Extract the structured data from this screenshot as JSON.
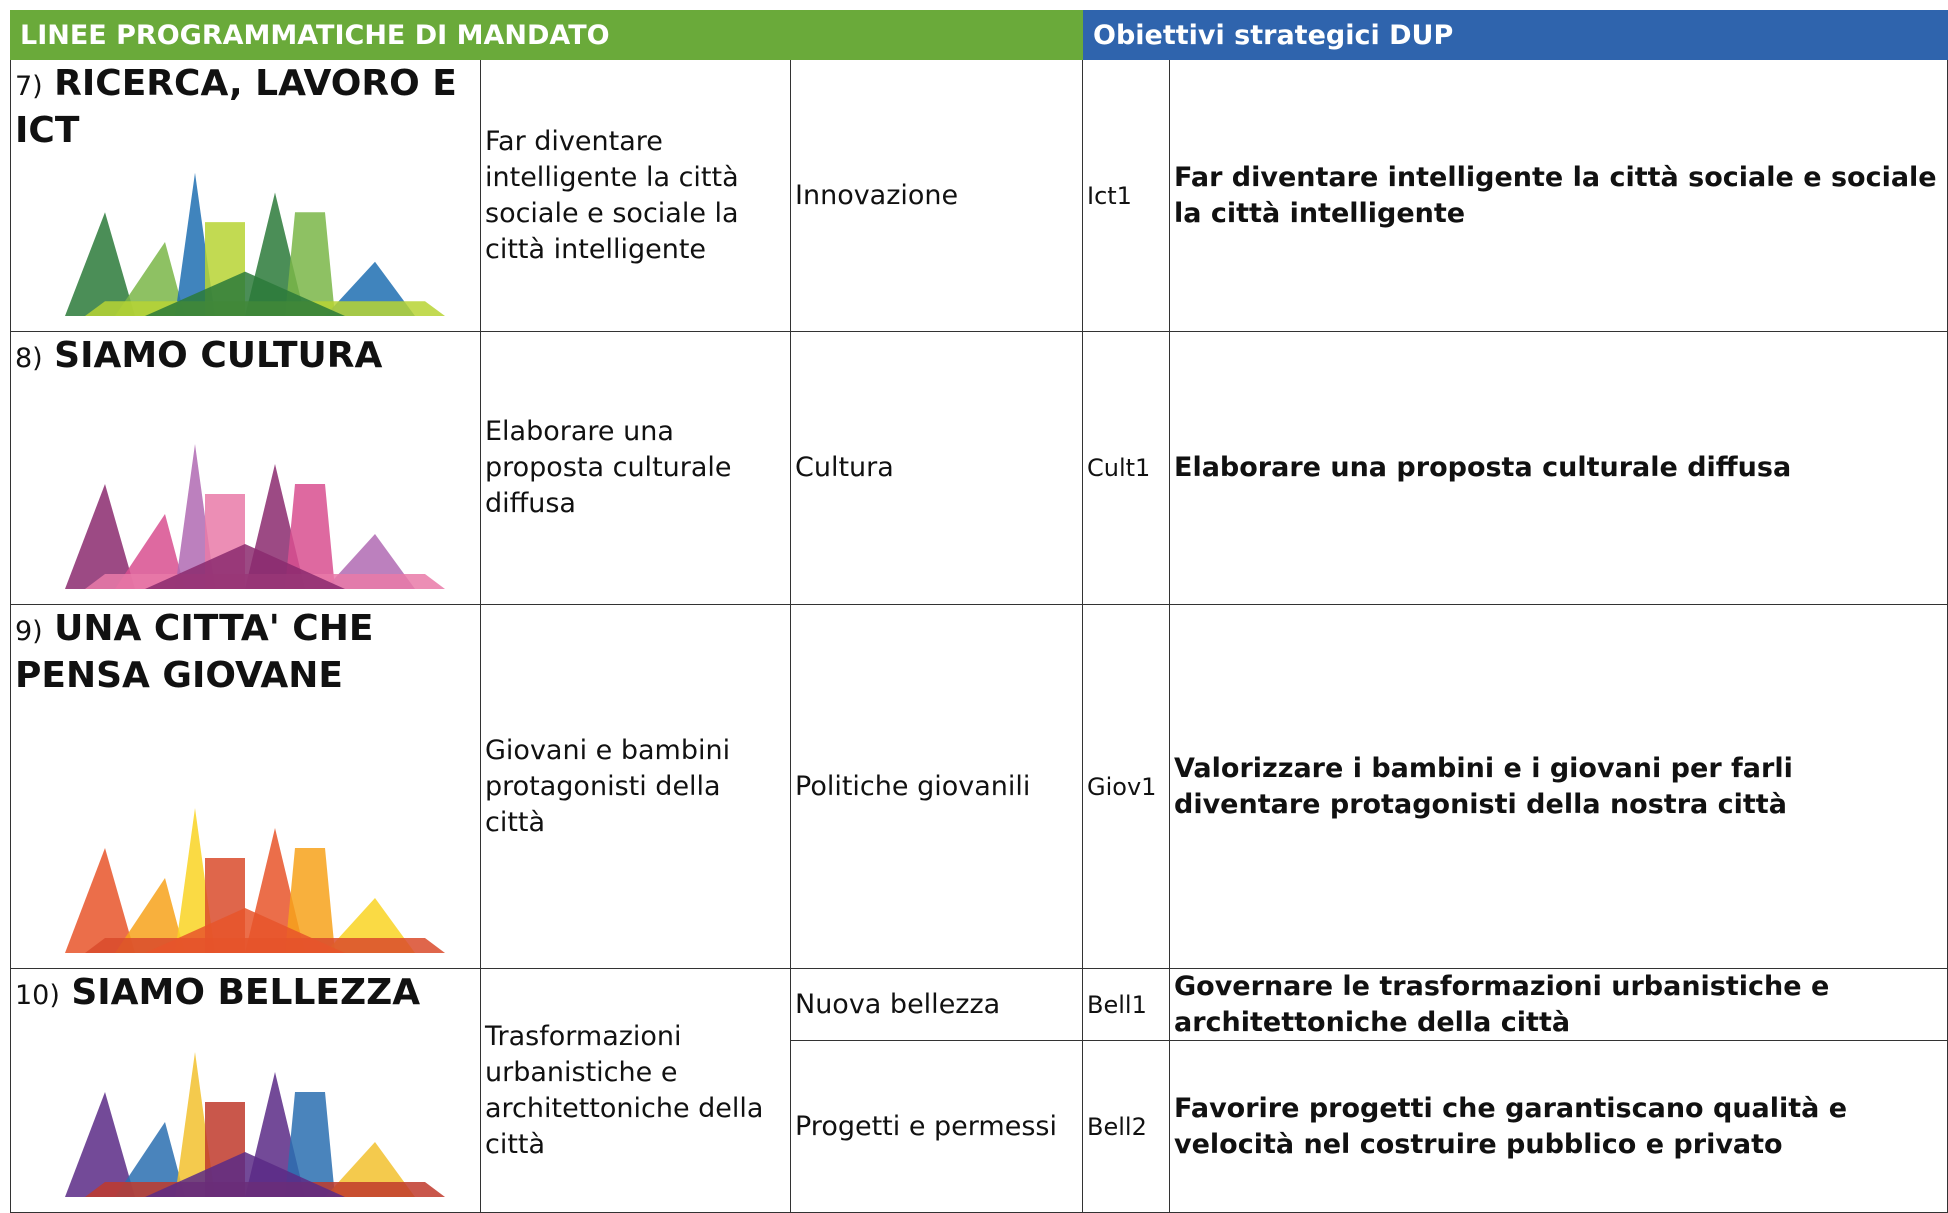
{
  "header": {
    "left": "LINEE PROGRAMMATICHE DI MANDATO",
    "right": "Obiettivi strategici DUP"
  },
  "rows": [
    {
      "number": "7)",
      "title": "RICERCA, LAVORO E ICT",
      "description": "Far diventare intelligente la città sociale e sociale la città intelligente",
      "items": [
        {
          "area": "Innovazione",
          "code": "Ict1",
          "objective": "Far diventare intelligente la città sociale e sociale la città intelligente"
        }
      ]
    },
    {
      "number": "8)",
      "title": "SIAMO CULTURA",
      "description": "Elaborare una proposta culturale diffusa",
      "items": [
        {
          "area": "Cultura",
          "code": "Cult1",
          "objective": "Elaborare una proposta culturale diffusa"
        }
      ]
    },
    {
      "number": "9)",
      "title": "UNA CITTA' CHE PENSA GIOVANE",
      "description": "Giovani  e bambini protagonisti della città",
      "items": [
        {
          "area": "Politiche giovanili",
          "code": "Giov1",
          "objective": "Valorizzare i bambini e i giovani per farli diventare protagonisti della nostra città"
        }
      ]
    },
    {
      "number": "10)",
      "title": "SIAMO BELLEZZA",
      "description": "Trasformazioni urbanistiche e architettoniche della città",
      "items": [
        {
          "area": "Nuova bellezza",
          "code": "Bell1",
          "objective": "Governare le trasformazioni urbanistiche e architettoniche della città"
        },
        {
          "area": "Progetti e permessi",
          "code": "Bell2",
          "objective": "Favorire progetti che garantiscano qualità e velocità nel costruire pubblico e privato"
        }
      ]
    }
  ]
}
